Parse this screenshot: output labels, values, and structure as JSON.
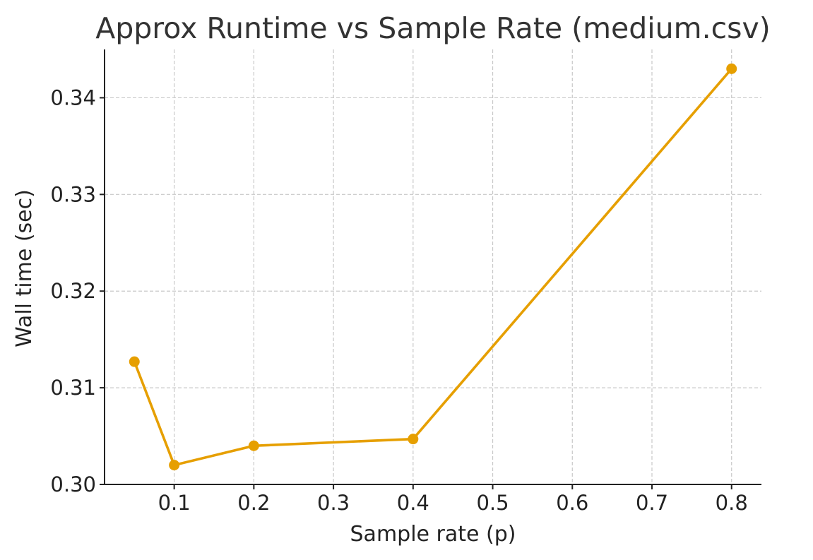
{
  "chart_data": {
    "type": "line",
    "title": "Approx Runtime vs Sample Rate (medium.csv)",
    "xlabel": "Sample rate (p)",
    "ylabel": "Wall time (sec)",
    "xlim": [
      0.0125,
      0.8375
    ],
    "ylim": [
      0.3,
      0.345
    ],
    "xticks": [
      0.1,
      0.2,
      0.3,
      0.4,
      0.5,
      0.6,
      0.7,
      0.8
    ],
    "xtick_labels": [
      "0.1",
      "0.2",
      "0.3",
      "0.4",
      "0.5",
      "0.6",
      "0.7",
      "0.8"
    ],
    "yticks": [
      0.3,
      0.31,
      0.32,
      0.33,
      0.34
    ],
    "ytick_labels": [
      "0.30",
      "0.31",
      "0.32",
      "0.33",
      "0.34"
    ],
    "grid": true,
    "series": [
      {
        "color": "#E69F00",
        "marker": "circle",
        "x": [
          0.05,
          0.1,
          0.2,
          0.4,
          0.8
        ],
        "y": [
          0.3127,
          0.302,
          0.304,
          0.3047,
          0.343
        ]
      }
    ]
  }
}
